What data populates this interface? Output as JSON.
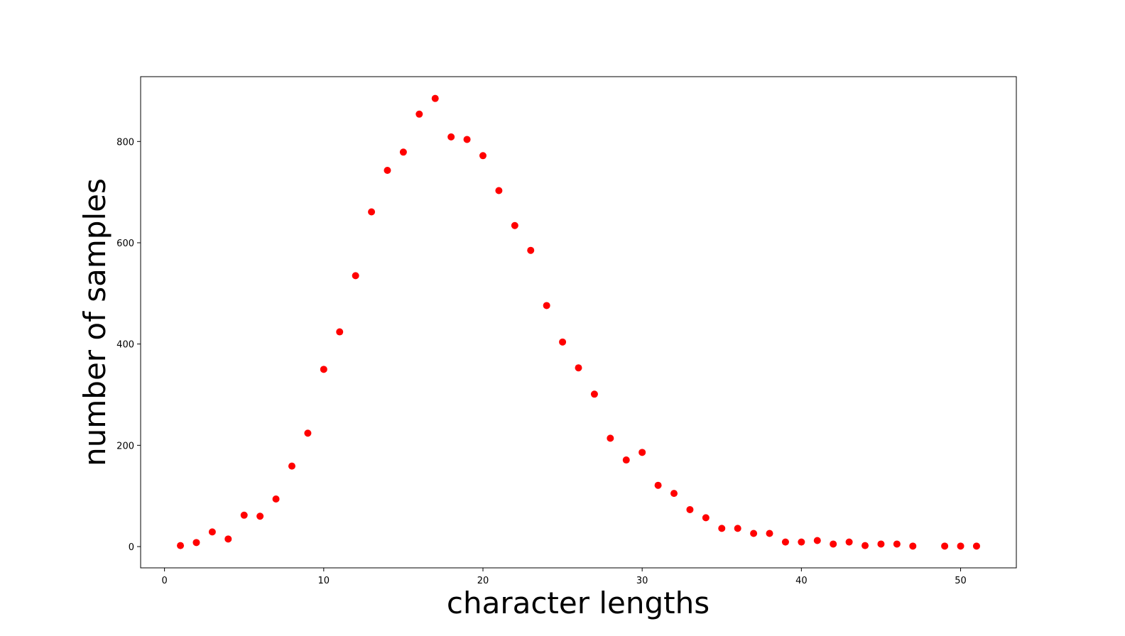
{
  "chart_data": {
    "type": "scatter",
    "title": "",
    "xlabel": "character lengths",
    "ylabel": "number of samples",
    "xlim": [
      -1.5,
      53.5
    ],
    "ylim": [
      -42,
      928
    ],
    "xticks": [
      0,
      10,
      20,
      30,
      40,
      50
    ],
    "yticks": [
      0,
      200,
      400,
      600,
      800
    ],
    "grid": false,
    "marker_color": "#ff0000",
    "points": {
      "x": [
        1,
        2,
        3,
        4,
        5,
        6,
        7,
        8,
        9,
        10,
        11,
        12,
        13,
        14,
        15,
        16,
        17,
        18,
        19,
        20,
        21,
        22,
        23,
        24,
        25,
        26,
        27,
        28,
        29,
        30,
        31,
        32,
        33,
        34,
        35,
        36,
        37,
        38,
        39,
        40,
        41,
        42,
        43,
        44,
        45,
        46,
        47,
        49,
        50,
        51
      ],
      "y": [
        2,
        8,
        29,
        15,
        62,
        60,
        94,
        159,
        224,
        350,
        424,
        535,
        661,
        743,
        779,
        854,
        885,
        809,
        804,
        772,
        703,
        634,
        585,
        476,
        404,
        353,
        301,
        214,
        171,
        186,
        121,
        105,
        73,
        57,
        36,
        36,
        26,
        26,
        9,
        9,
        12,
        5,
        9,
        2,
        5,
        5,
        1,
        1,
        1,
        1
      ]
    }
  }
}
